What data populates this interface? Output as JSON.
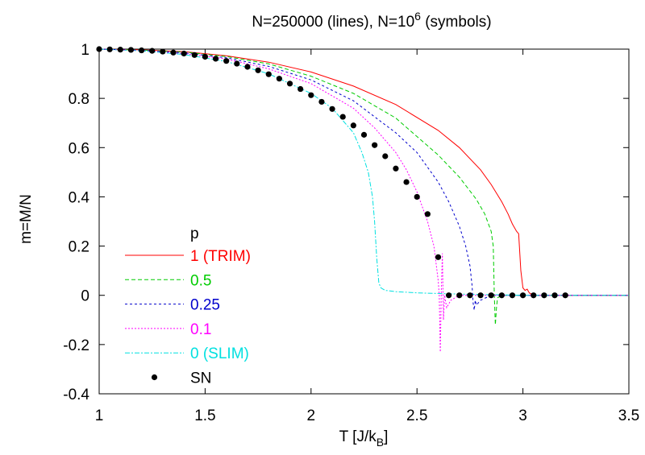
{
  "chart_data": {
    "type": "line",
    "title_main": "N=250000 (lines), N=10",
    "title_exp": "6",
    "title_tail": " (symbols)",
    "xlabel_main": "T [J/k",
    "xlabel_sub": "B",
    "xlabel_tail": "]",
    "ylabel": "m=M/N",
    "xlim": [
      1,
      3.5
    ],
    "ylim": [
      -0.4,
      1
    ],
    "xticks": [
      1,
      1.5,
      2,
      2.5,
      3,
      3.5
    ],
    "xtick_labels": [
      "1",
      "1.5",
      "2",
      "2.5",
      "3",
      "3.5"
    ],
    "yticks": [
      -0.4,
      -0.2,
      0,
      0.2,
      0.4,
      0.6,
      0.8,
      1
    ],
    "ytick_labels": [
      "-0.4",
      "-0.2",
      "0",
      "0.2",
      "0.4",
      "0.6",
      "0.8",
      "1"
    ],
    "grid": false,
    "legend_placement": "left",
    "legend_title": "p",
    "series": [
      {
        "name": "1 (TRIM)",
        "color": "#ff0000",
        "dash": "",
        "x": [
          1.0,
          1.2,
          1.4,
          1.6,
          1.8,
          2.0,
          2.2,
          2.4,
          2.6,
          2.7,
          2.8,
          2.85,
          2.9,
          2.93,
          2.95,
          2.97,
          2.98,
          2.99,
          3.0,
          3.01,
          3.02,
          3.03,
          3.05,
          3.1,
          3.2,
          3.3,
          3.4,
          3.5
        ],
        "y": [
          1.0,
          0.997,
          0.99,
          0.973,
          0.947,
          0.907,
          0.85,
          0.775,
          0.67,
          0.6,
          0.51,
          0.45,
          0.38,
          0.33,
          0.29,
          0.26,
          0.25,
          0.1,
          0.03,
          0.02,
          0.025,
          0.01,
          0.0,
          0.0,
          0.0,
          0.0,
          0.0,
          0.0
        ]
      },
      {
        "name": "0.5",
        "color": "#00cc00",
        "dash": "5,3",
        "x": [
          1.0,
          1.2,
          1.4,
          1.6,
          1.8,
          2.0,
          2.2,
          2.4,
          2.6,
          2.7,
          2.78,
          2.82,
          2.85,
          2.86,
          2.865,
          2.87,
          2.875,
          2.88,
          2.9,
          3.0,
          3.2,
          3.5
        ],
        "y": [
          1.0,
          0.996,
          0.988,
          0.97,
          0.94,
          0.89,
          0.82,
          0.72,
          0.57,
          0.48,
          0.39,
          0.33,
          0.26,
          0.2,
          0.0,
          -0.12,
          -0.05,
          -0.01,
          0.0,
          0.0,
          0.0,
          0.0
        ]
      },
      {
        "name": "0.25",
        "color": "#0000cc",
        "dash": "3,3",
        "x": [
          1.0,
          1.2,
          1.4,
          1.6,
          1.8,
          2.0,
          2.2,
          2.4,
          2.5,
          2.6,
          2.65,
          2.7,
          2.73,
          2.75,
          2.76,
          2.765,
          2.77,
          2.775,
          2.78,
          2.8,
          2.85,
          3.0,
          3.5
        ],
        "y": [
          1.0,
          0.995,
          0.985,
          0.965,
          0.93,
          0.875,
          0.79,
          0.66,
          0.58,
          0.46,
          0.38,
          0.28,
          0.2,
          0.12,
          0.04,
          -0.03,
          -0.06,
          -0.02,
          -0.04,
          -0.02,
          0.0,
          0.0,
          0.0
        ]
      },
      {
        "name": "0.1",
        "color": "#ff00ff",
        "dash": "2,2",
        "x": [
          1.0,
          1.2,
          1.4,
          1.6,
          1.8,
          2.0,
          2.2,
          2.3,
          2.4,
          2.45,
          2.5,
          2.55,
          2.58,
          2.6,
          2.605,
          2.61,
          2.615,
          2.62,
          2.625,
          2.63,
          2.64,
          2.66,
          2.7,
          2.8,
          3.0,
          3.5
        ],
        "y": [
          1.0,
          0.994,
          0.982,
          0.96,
          0.92,
          0.86,
          0.76,
          0.68,
          0.58,
          0.51,
          0.42,
          0.3,
          0.2,
          0.06,
          0.0,
          -0.23,
          0.02,
          0.17,
          -0.1,
          0.0,
          -0.05,
          -0.02,
          0.0,
          0.0,
          0.0,
          0.0
        ]
      },
      {
        "name": "0 (SLIM)",
        "color": "#00e0e0",
        "dash": "6,2,2,2",
        "x": [
          1.0,
          1.2,
          1.4,
          1.6,
          1.8,
          2.0,
          2.1,
          2.2,
          2.24,
          2.27,
          2.29,
          2.3,
          2.31,
          2.32,
          2.33,
          2.35,
          2.4,
          2.5,
          2.7,
          3.0,
          3.5
        ],
        "y": [
          1.0,
          0.993,
          0.978,
          0.95,
          0.9,
          0.82,
          0.76,
          0.66,
          0.58,
          0.5,
          0.4,
          0.3,
          0.15,
          0.05,
          0.03,
          0.02,
          0.015,
          0.01,
          0.005,
          0.0,
          0.0
        ]
      }
    ],
    "symbols": {
      "name": "SN",
      "color": "#000000",
      "x": [
        1.0,
        1.05,
        1.1,
        1.15,
        1.2,
        1.25,
        1.3,
        1.35,
        1.4,
        1.45,
        1.5,
        1.55,
        1.6,
        1.65,
        1.7,
        1.75,
        1.8,
        1.85,
        1.9,
        1.95,
        2.0,
        2.05,
        2.1,
        2.15,
        2.2,
        2.25,
        2.3,
        2.35,
        2.4,
        2.45,
        2.5,
        2.55,
        2.6,
        2.65,
        2.7,
        2.75,
        2.8,
        2.85,
        2.9,
        2.95,
        3.0,
        3.05,
        3.1,
        3.15,
        3.2
      ],
      "y": [
        1.0,
        0.999,
        0.998,
        0.997,
        0.995,
        0.993,
        0.99,
        0.986,
        0.982,
        0.976,
        0.969,
        0.961,
        0.952,
        0.941,
        0.928,
        0.914,
        0.898,
        0.88,
        0.86,
        0.838,
        0.813,
        0.786,
        0.757,
        0.725,
        0.69,
        0.652,
        0.61,
        0.565,
        0.515,
        0.46,
        0.4,
        0.33,
        0.155,
        0.0,
        0.0,
        0.0,
        0.0,
        0.0,
        0.0,
        0.0,
        0.0,
        0.0,
        0.0,
        0.0,
        0.0
      ]
    }
  }
}
